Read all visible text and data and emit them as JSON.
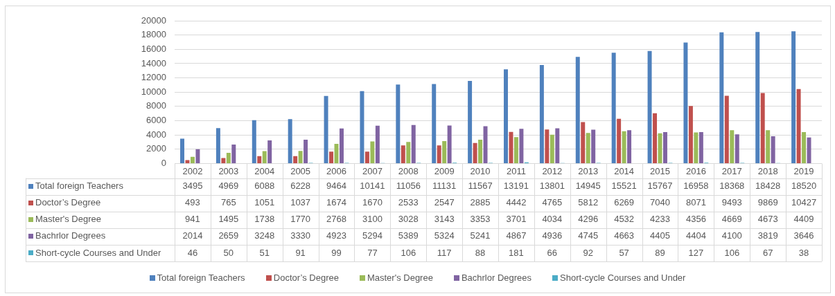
{
  "chart_data": {
    "type": "bar",
    "categories": [
      "2002",
      "2003",
      "2004",
      "2005",
      "2006",
      "2007",
      "2008",
      "2009",
      "2010",
      "2011",
      "2012",
      "2013",
      "2014",
      "2015",
      "2016",
      "2017",
      "2018",
      "2019"
    ],
    "series": [
      {
        "name": "Total foreign Teachers",
        "color": "#4f81bd",
        "values": [
          3495,
          4969,
          6088,
          6228,
          9464,
          10141,
          11056,
          11131,
          11567,
          13191,
          13801,
          14945,
          15521,
          15767,
          16958,
          18368,
          18428,
          18520
        ]
      },
      {
        "name": "Doctor’s Degree",
        "color": "#c0504d",
        "values": [
          493,
          765,
          1051,
          1037,
          1674,
          1670,
          2533,
          2547,
          2885,
          4442,
          4765,
          5812,
          6269,
          7040,
          8071,
          9493,
          9869,
          10427
        ]
      },
      {
        "name": "Master's Degree",
        "color": "#9bbb59",
        "values": [
          941,
          1495,
          1738,
          1770,
          2768,
          3100,
          3028,
          3143,
          3353,
          3701,
          4034,
          4296,
          4532,
          4233,
          4356,
          4669,
          4673,
          4409
        ]
      },
      {
        "name": "Bachrlor Degrees",
        "color": "#8064a2",
        "values": [
          2014,
          2659,
          3248,
          3330,
          4923,
          5294,
          5389,
          5324,
          5241,
          4867,
          4936,
          4745,
          4663,
          4405,
          4404,
          4100,
          3819,
          3646
        ]
      },
      {
        "name": "Short-cycle Courses and Under",
        "color": "#4bacc6",
        "values": [
          46,
          50,
          51,
          91,
          99,
          77,
          106,
          117,
          88,
          181,
          66,
          92,
          57,
          89,
          127,
          106,
          67,
          38
        ]
      }
    ],
    "ylim": [
      0,
      20000
    ],
    "yticks": [
      0,
      2000,
      4000,
      6000,
      8000,
      10000,
      12000,
      14000,
      16000,
      18000,
      20000
    ],
    "grid": "y",
    "legend": "bottom",
    "data_labels": true
  }
}
